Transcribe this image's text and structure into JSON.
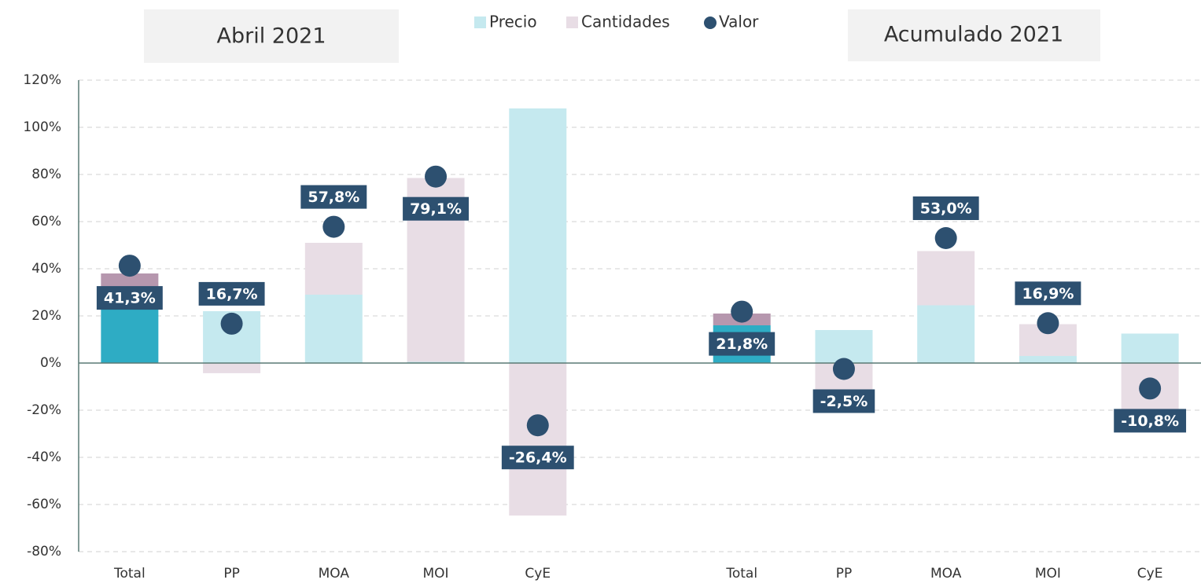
{
  "chart_data": {
    "type": "bar",
    "annotations": [
      "Abril 2021",
      "Acumulado 2021"
    ],
    "categories": [
      "Total",
      "PP",
      "MOA",
      "MOI",
      "CyE",
      null,
      "Total",
      "PP",
      "MOA",
      "MOI",
      "CyE"
    ],
    "series": [
      {
        "name": "Precio",
        "color": "#c5e9ef",
        "colors": [
          "#2eacc4",
          "#c5e9ef",
          "#c5e9ef",
          "#c5e9ef",
          "#c5e9ef",
          null,
          "#2eacc4",
          "#c5e9ef",
          "#c5e9ef",
          "#c5e9ef",
          "#c5e9ef"
        ],
        "values": [
          25.5,
          22,
          29,
          0.5,
          108,
          null,
          16,
          14,
          24.5,
          3,
          12.5
        ]
      },
      {
        "name": "Cantidades",
        "color": "#e8dde5",
        "colors": [
          "#b697ae",
          "#e8dde5",
          "#e8dde5",
          "#e8dde5",
          "#e8dde5",
          null,
          "#b697ae",
          "#e8dde5",
          "#e8dde5",
          "#e8dde5",
          "#e8dde5"
        ],
        "values": [
          12.5,
          -4.3,
          22,
          78,
          -64.7,
          null,
          5,
          -12,
          23,
          13.5,
          -21
        ]
      },
      {
        "name": "Valor",
        "color": "#2d5070",
        "marker": "dot",
        "values": [
          41.3,
          16.7,
          57.8,
          79.1,
          -26.4,
          null,
          21.8,
          -2.5,
          53.0,
          16.9,
          -10.8
        ],
        "value_labels": [
          "41,3%",
          "16,7%",
          "57,8%",
          "79,1%",
          "-26,4%",
          null,
          "21,8%",
          "-2,5%",
          "53,0%",
          "16,9%",
          "-10,8%"
        ]
      }
    ],
    "ylim": [
      -80,
      120
    ],
    "yticks": [
      {
        "value": -80,
        "label": "-80%"
      },
      {
        "value": -60,
        "label": "-60%"
      },
      {
        "value": -40,
        "label": "-40%"
      },
      {
        "value": -20,
        "label": "-20%"
      },
      {
        "value": 0,
        "label": "0%"
      },
      {
        "value": 20,
        "label": "20%"
      },
      {
        "value": 40,
        "label": "40%"
      },
      {
        "value": 60,
        "label": "60%"
      },
      {
        "value": 80,
        "label": "80%"
      },
      {
        "value": 100,
        "label": "100%"
      },
      {
        "value": 120,
        "label": "120%"
      }
    ],
    "grid": true,
    "legend": "top"
  }
}
